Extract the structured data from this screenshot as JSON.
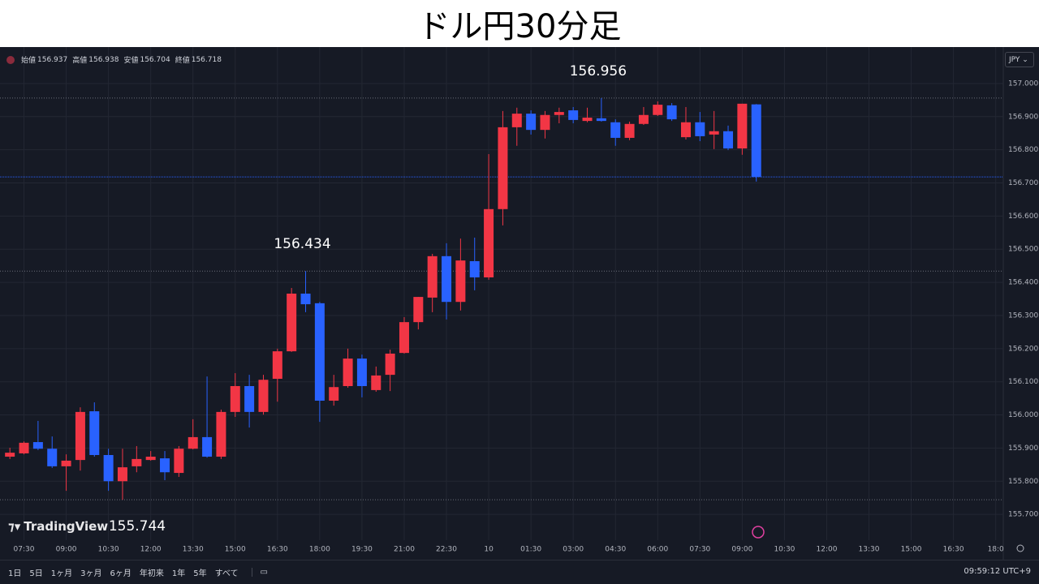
{
  "title": "ドル円30分足",
  "logo": "TradingView",
  "currency": "JPY",
  "ohlc_header": [
    {
      "label": "始値",
      "value": 156.937
    },
    {
      "label": "高値",
      "value": 156.938
    },
    {
      "label": "安値",
      "value": 156.704
    },
    {
      "label": "終値",
      "value": 156.718
    }
  ],
  "toolbar": {
    "ranges": [
      "1日",
      "5日",
      "1ヶ月",
      "3ヶ月",
      "6ヶ月",
      "年初来",
      "1年",
      "5年",
      "すべて"
    ],
    "clock": "09:59:12 UTC+9"
  },
  "chart_data": {
    "type": "candlestick",
    "categories": [
      null,
      "07:30",
      null,
      null,
      "09:00",
      null,
      null,
      "10:30",
      null,
      null,
      "12:00",
      null,
      null,
      "13:30",
      null,
      null,
      "15:00",
      null,
      null,
      "16:30",
      null,
      null,
      "18:00",
      null,
      null,
      "19:30",
      null,
      null,
      "21:00",
      null,
      null,
      "22:30",
      null,
      null,
      "10",
      null,
      null,
      "01:30",
      null,
      null,
      "03:00",
      null,
      null,
      "04:30",
      null,
      null,
      "06:00",
      null,
      null,
      "07:30",
      null,
      null,
      "09:00",
      null,
      null,
      "10:30",
      null,
      null,
      "12:00",
      null,
      null,
      "13:30",
      null,
      null,
      "15:00",
      null,
      null,
      "16:30",
      null,
      null,
      "18:0"
    ],
    "open": [
      155.874,
      155.884,
      155.918,
      155.898,
      155.845,
      155.864,
      156.011,
      155.879,
      155.8,
      155.845,
      155.864,
      155.869,
      155.825,
      155.898,
      155.933,
      155.874,
      156.009,
      156.087,
      156.009,
      156.109,
      156.192,
      156.366,
      156.337,
      156.043,
      156.087,
      156.17,
      156.075,
      156.121,
      156.187,
      156.28,
      156.354,
      156.479,
      156.341,
      156.464,
      156.415,
      156.621,
      156.868,
      156.909,
      156.86,
      156.905,
      156.919,
      156.887,
      156.895,
      156.883,
      156.836,
      156.878,
      156.905,
      156.934,
      156.838,
      156.883,
      156.846,
      156.856,
      156.804,
      156.937,
      null,
      null,
      null,
      null,
      null,
      null,
      null,
      null,
      null,
      null,
      null,
      null,
      null,
      null,
      null,
      null,
      null
    ],
    "high": [
      155.901,
      155.92,
      155.982,
      155.935,
      155.881,
      156.023,
      156.038,
      155.898,
      155.898,
      155.906,
      155.891,
      155.891,
      155.906,
      155.987,
      156.116,
      156.016,
      156.126,
      156.121,
      156.121,
      156.2,
      156.383,
      156.434,
      156.341,
      156.121,
      156.2,
      156.182,
      156.146,
      156.197,
      156.295,
      156.356,
      156.486,
      156.518,
      156.532,
      156.535,
      156.787,
      156.917,
      156.927,
      156.919,
      156.917,
      156.927,
      156.929,
      156.927,
      156.956,
      156.892,
      156.885,
      156.929,
      156.946,
      156.941,
      156.929,
      156.914,
      156.917,
      156.873,
      156.939,
      156.938,
      null,
      null,
      null,
      null,
      null,
      null,
      null,
      null,
      null,
      null,
      null,
      null,
      null,
      null,
      null,
      null,
      null
    ],
    "low": [
      155.867,
      155.881,
      155.894,
      155.84,
      155.771,
      155.832,
      155.874,
      155.771,
      155.744,
      155.827,
      155.862,
      155.803,
      155.813,
      155.896,
      155.871,
      155.867,
      155.994,
      155.962,
      156.001,
      156.04,
      156.19,
      156.31,
      155.979,
      156.028,
      156.082,
      156.053,
      156.07,
      156.072,
      156.185,
      156.258,
      156.31,
      156.288,
      156.315,
      156.376,
      156.408,
      156.572,
      156.812,
      156.846,
      156.834,
      156.88,
      156.88,
      156.883,
      156.885,
      156.812,
      156.829,
      156.875,
      156.902,
      156.887,
      156.831,
      156.826,
      156.802,
      156.799,
      156.785,
      156.704,
      null,
      null,
      null,
      null,
      null,
      null,
      null,
      null,
      null,
      null,
      null,
      null,
      null,
      null,
      null,
      null,
      null
    ],
    "close": [
      155.886,
      155.916,
      155.898,
      155.845,
      155.862,
      156.009,
      155.879,
      155.8,
      155.842,
      155.867,
      155.874,
      155.827,
      155.898,
      155.933,
      155.874,
      156.009,
      156.087,
      156.009,
      156.106,
      156.192,
      156.366,
      156.334,
      156.043,
      156.084,
      156.17,
      156.087,
      156.119,
      156.185,
      156.28,
      156.356,
      156.479,
      156.341,
      156.466,
      156.415,
      156.621,
      156.868,
      156.909,
      156.86,
      156.905,
      156.914,
      156.89,
      156.897,
      156.887,
      156.836,
      156.878,
      156.905,
      156.936,
      156.892,
      156.883,
      156.841,
      156.856,
      156.804,
      156.939,
      156.718,
      null,
      null,
      null,
      null,
      null,
      null,
      null,
      null,
      null,
      null,
      null,
      null,
      null,
      null,
      null,
      null,
      null
    ],
    "up_color": "#f23645",
    "down_color": "#2962ff",
    "ylim": [
      155.622,
      157.11
    ],
    "yticks": [
      {
        "value": 155.7,
        "label": "155.700"
      },
      {
        "value": 155.8,
        "label": "155.800"
      },
      {
        "value": 155.9,
        "label": "155.900"
      },
      {
        "value": 156.0,
        "label": "156.000"
      },
      {
        "value": 156.1,
        "label": "156.100"
      },
      {
        "value": 156.2,
        "label": "156.200"
      },
      {
        "value": 156.3,
        "label": "156.300"
      },
      {
        "value": 156.4,
        "label": "156.400"
      },
      {
        "value": 156.5,
        "label": "156.500"
      },
      {
        "value": 156.6,
        "label": "156.600"
      },
      {
        "value": 156.7,
        "label": "156.700"
      },
      {
        "value": 156.8,
        "label": "156.800"
      },
      {
        "value": 156.9,
        "label": "156.900"
      },
      {
        "value": 157.0,
        "label": "157.000"
      }
    ],
    "grid": true,
    "annotations": [
      156.956,
      156.434,
      155.744
    ]
  }
}
